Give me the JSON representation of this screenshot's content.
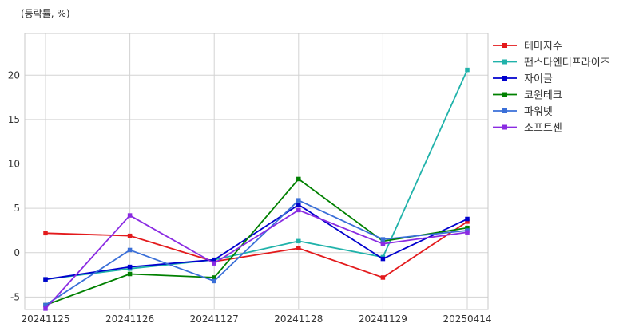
{
  "chart_data": {
    "type": "line",
    "title": "",
    "unit_label": "(등락률, %)",
    "xlabel": "",
    "ylabel": "",
    "categories": [
      "20241125",
      "20241126",
      "20241127",
      "20241128",
      "20241129",
      "20250414"
    ],
    "yticks": [
      -5,
      0,
      5,
      10,
      15,
      20
    ],
    "ylim": [
      -6.4,
      24.7
    ],
    "grid": true,
    "legend_position": "right",
    "series": [
      {
        "name": "테마지수",
        "color": "#e31a1c",
        "values": [
          2.2,
          1.9,
          -1.0,
          0.5,
          -2.8,
          3.5
        ]
      },
      {
        "name": "팬스타엔터프라이즈",
        "color": "#20b2aa",
        "values": [
          -3.0,
          -1.8,
          -0.8,
          1.3,
          -0.5,
          20.6
        ]
      },
      {
        "name": "자이글",
        "color": "#0000cd",
        "values": [
          -3.0,
          -1.6,
          -0.8,
          5.4,
          -0.7,
          3.8
        ]
      },
      {
        "name": "코윈테크",
        "color": "#008000",
        "values": [
          -5.9,
          -2.4,
          -2.8,
          8.3,
          1.3,
          2.8
        ]
      },
      {
        "name": "파워넷",
        "color": "#3a6fd8",
        "values": [
          -5.9,
          0.3,
          -3.2,
          5.9,
          1.5,
          2.5
        ]
      },
      {
        "name": "소프트센",
        "color": "#8a2be2",
        "values": [
          -6.3,
          4.2,
          -1.2,
          4.8,
          1.0,
          2.3
        ]
      }
    ]
  }
}
